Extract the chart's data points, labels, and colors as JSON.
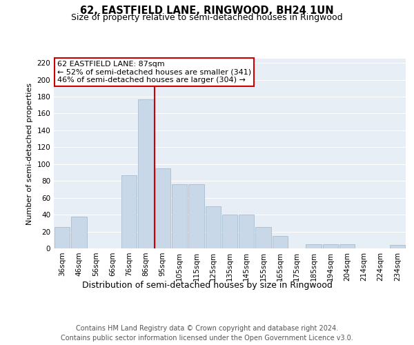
{
  "title": "62, EASTFIELD LANE, RINGWOOD, BH24 1UN",
  "subtitle": "Size of property relative to semi-detached houses in Ringwood",
  "xlabel": "Distribution of semi-detached houses by size in Ringwood",
  "ylabel": "Number of semi-detached properties",
  "footnote1": "Contains HM Land Registry data © Crown copyright and database right 2024.",
  "footnote2": "Contains public sector information licensed under the Open Government Licence v3.0.",
  "annotation_line1": "62 EASTFIELD LANE: 87sqm",
  "annotation_line2": "← 52% of semi-detached houses are smaller (341)",
  "annotation_line3": "46% of semi-detached houses are larger (304) →",
  "bar_labels": [
    "36sqm",
    "46sqm",
    "56sqm",
    "66sqm",
    "76sqm",
    "86sqm",
    "95sqm",
    "105sqm",
    "115sqm",
    "125sqm",
    "135sqm",
    "145sqm",
    "155sqm",
    "165sqm",
    "175sqm",
    "185sqm",
    "194sqm",
    "204sqm",
    "214sqm",
    "224sqm",
    "234sqm"
  ],
  "bar_values": [
    25,
    38,
    0,
    0,
    87,
    177,
    95,
    76,
    76,
    50,
    40,
    40,
    25,
    15,
    0,
    5,
    5,
    5,
    0,
    0,
    4
  ],
  "bar_color": "#c8d8e8",
  "bar_edge_color": "#a8bcd0",
  "vline_color": "#cc0000",
  "vline_x": 5.5,
  "background_color": "#e8eef6",
  "ylim": [
    0,
    225
  ],
  "yticks": [
    0,
    20,
    40,
    60,
    80,
    100,
    120,
    140,
    160,
    180,
    200,
    220
  ],
  "title_fontsize": 10.5,
  "subtitle_fontsize": 9,
  "xlabel_fontsize": 9,
  "ylabel_fontsize": 8,
  "tick_fontsize": 7.5,
  "footnote_fontsize": 7,
  "annotation_fontsize": 8
}
